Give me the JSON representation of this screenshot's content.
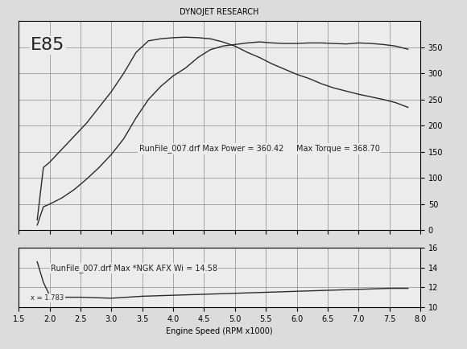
{
  "chart_data": [
    {
      "type": "line",
      "title": "DYNOJET RESEARCH",
      "annotations": [
        "E85",
        "RunFile_007.drf Max Power = 360.42     Max Torque = 368.70"
      ],
      "x": [
        1.8,
        1.9,
        2.0,
        2.2,
        2.4,
        2.6,
        2.8,
        3.0,
        3.2,
        3.4,
        3.6,
        3.8,
        4.0,
        4.2,
        4.4,
        4.6,
        4.8,
        5.0,
        5.2,
        5.4,
        5.6,
        5.8,
        6.0,
        6.2,
        6.4,
        6.6,
        6.8,
        7.0,
        7.2,
        7.4,
        7.6,
        7.8
      ],
      "series": [
        {
          "color": "#2a2a2a",
          "values": [
            20,
            120,
            130,
            155,
            180,
            205,
            235,
            265,
            300,
            340,
            362,
            366,
            368,
            369,
            368,
            366,
            360,
            352,
            340,
            330,
            318,
            308,
            298,
            290,
            280,
            272,
            266,
            260,
            255,
            250,
            244,
            235
          ]
        },
        {
          "color": "#2a2a2a",
          "values": [
            10,
            45,
            50,
            62,
            78,
            98,
            120,
            145,
            175,
            215,
            250,
            275,
            295,
            310,
            330,
            345,
            352,
            355,
            358,
            360,
            358,
            357,
            357,
            358,
            358,
            357,
            356,
            358,
            357,
            355,
            352,
            346
          ]
        }
      ],
      "xlim": [
        1.5,
        8.0
      ],
      "xticks": [
        1.5,
        2.0,
        2.5,
        3.0,
        3.5,
        4.0,
        4.5,
        5.0,
        5.5,
        6.0,
        6.5,
        7.0,
        7.5,
        8.0
      ],
      "ylim": [
        0,
        400
      ],
      "yticks": [
        0,
        50,
        100,
        150,
        200,
        250,
        300,
        350
      ],
      "grid": true,
      "tick_labels": "y"
    },
    {
      "type": "line",
      "annotations": [
        "RunFile_007.drf Max *NGK AFX Wi = 14.58",
        "x = 1.783"
      ],
      "x_label": "Engine Speed (RPM x1000)",
      "x": [
        1.8,
        1.9,
        2.0,
        2.2,
        2.5,
        3.0,
        3.5,
        4.0,
        4.5,
        5.0,
        5.5,
        6.0,
        6.5,
        7.0,
        7.5,
        7.8
      ],
      "series": [
        {
          "color": "#2a2a2a",
          "values": [
            14.58,
            12.5,
            11.2,
            11.0,
            11.0,
            10.9,
            11.1,
            11.2,
            11.3,
            11.4,
            11.5,
            11.6,
            11.7,
            11.8,
            11.9,
            11.9
          ]
        }
      ],
      "xlim": [
        1.5,
        8.0
      ],
      "xticks": [
        1.5,
        2.0,
        2.5,
        3.0,
        3.5,
        4.0,
        4.5,
        5.0,
        5.5,
        6.0,
        6.5,
        7.0,
        7.5,
        8.0
      ],
      "ylim": [
        10,
        16
      ],
      "yticks": [
        10,
        12,
        14,
        16
      ],
      "grid": true
    }
  ]
}
